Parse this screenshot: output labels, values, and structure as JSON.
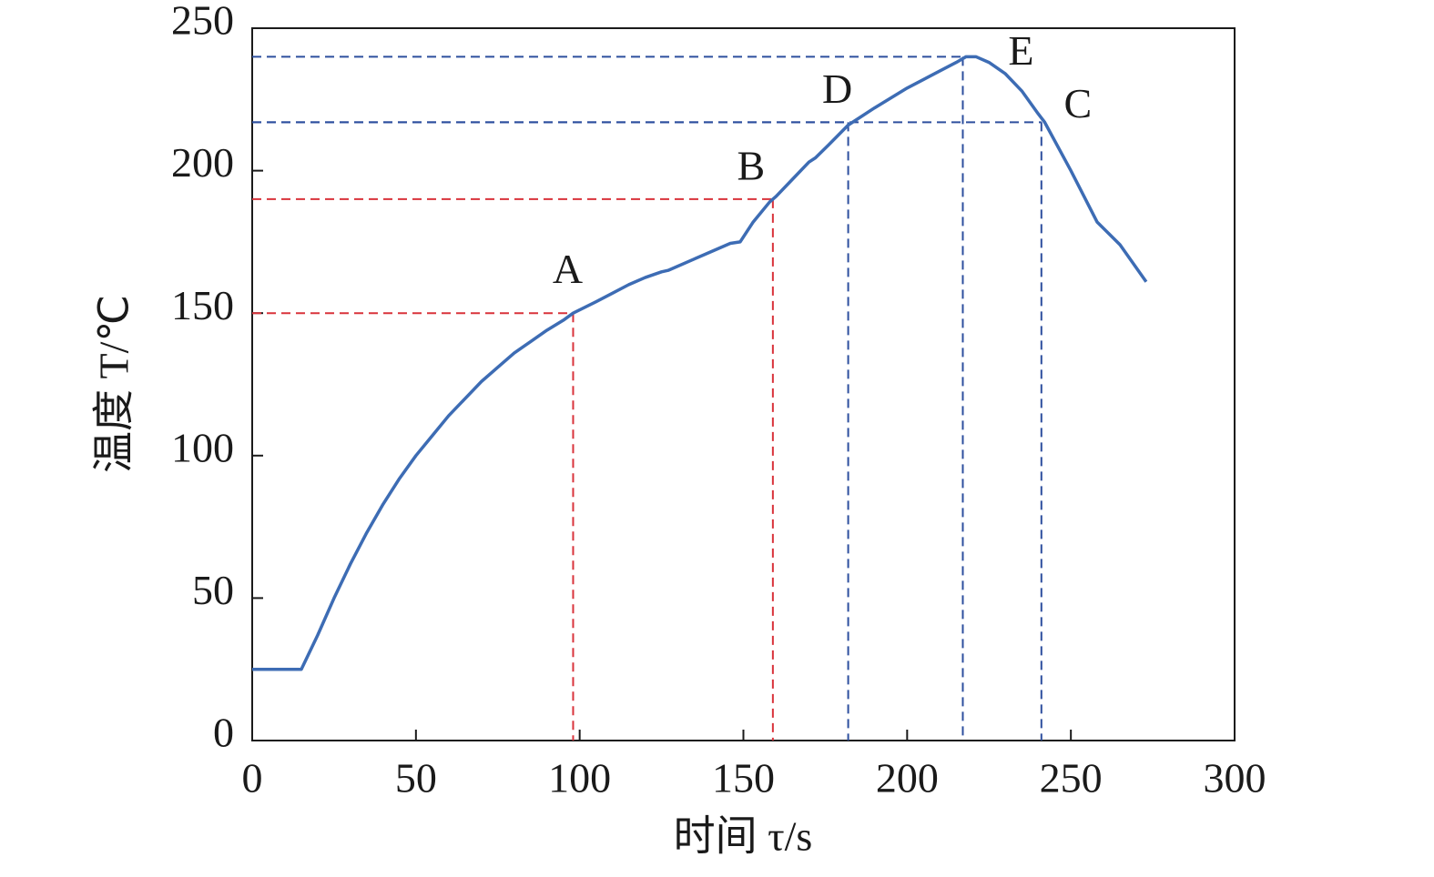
{
  "chart_data": {
    "type": "line",
    "x_label": "时间 τ/s",
    "y_label": "温度 T/℃",
    "xlim": [
      0,
      300
    ],
    "xticks": [
      0,
      50,
      100,
      150,
      200,
      250,
      300
    ],
    "ylim": [
      0,
      250
    ],
    "yticks": [
      0,
      50,
      100,
      150,
      200,
      250
    ],
    "series": [
      {
        "color": "#3d6cb4",
        "x": [
          0,
          15,
          20,
          25,
          30,
          35,
          40,
          45,
          50,
          55,
          60,
          65,
          70,
          75,
          80,
          85,
          90,
          95,
          98,
          105,
          110,
          115,
          120,
          125,
          127,
          135,
          140,
          146,
          149,
          153,
          158,
          160,
          165,
          170,
          172,
          176,
          182,
          190,
          200,
          210,
          215,
          218,
          221,
          225,
          230,
          235,
          240,
          242,
          250,
          258,
          265,
          273
        ],
        "values": [
          25,
          25,
          37,
          50,
          62,
          73,
          83,
          92,
          100,
          107,
          114,
          120,
          126,
          131,
          136,
          140,
          144,
          147.5,
          150,
          154,
          157,
          160,
          162.5,
          164.5,
          165,
          169,
          171.5,
          174.5,
          175,
          182,
          189,
          191,
          197,
          203,
          204.5,
          209,
          216,
          222,
          229,
          235,
          238,
          240,
          240,
          238,
          234,
          228,
          220,
          217,
          200,
          182,
          174,
          161
        ]
      }
    ],
    "annotations": [
      {
        "label": "A",
        "x": 98,
        "y": 150,
        "color": "#d9333b"
      },
      {
        "label": "B",
        "x": 159,
        "y": 190,
        "color": "#d9333b"
      },
      {
        "label": "D",
        "x": 182,
        "y": 217,
        "color": "#2d4f9e"
      },
      {
        "label": "E",
        "x": 217,
        "y": 240,
        "color": "#2d4f9e"
      },
      {
        "label": "C",
        "x": 241,
        "y": 217,
        "color": "#2d4f9e"
      }
    ]
  }
}
